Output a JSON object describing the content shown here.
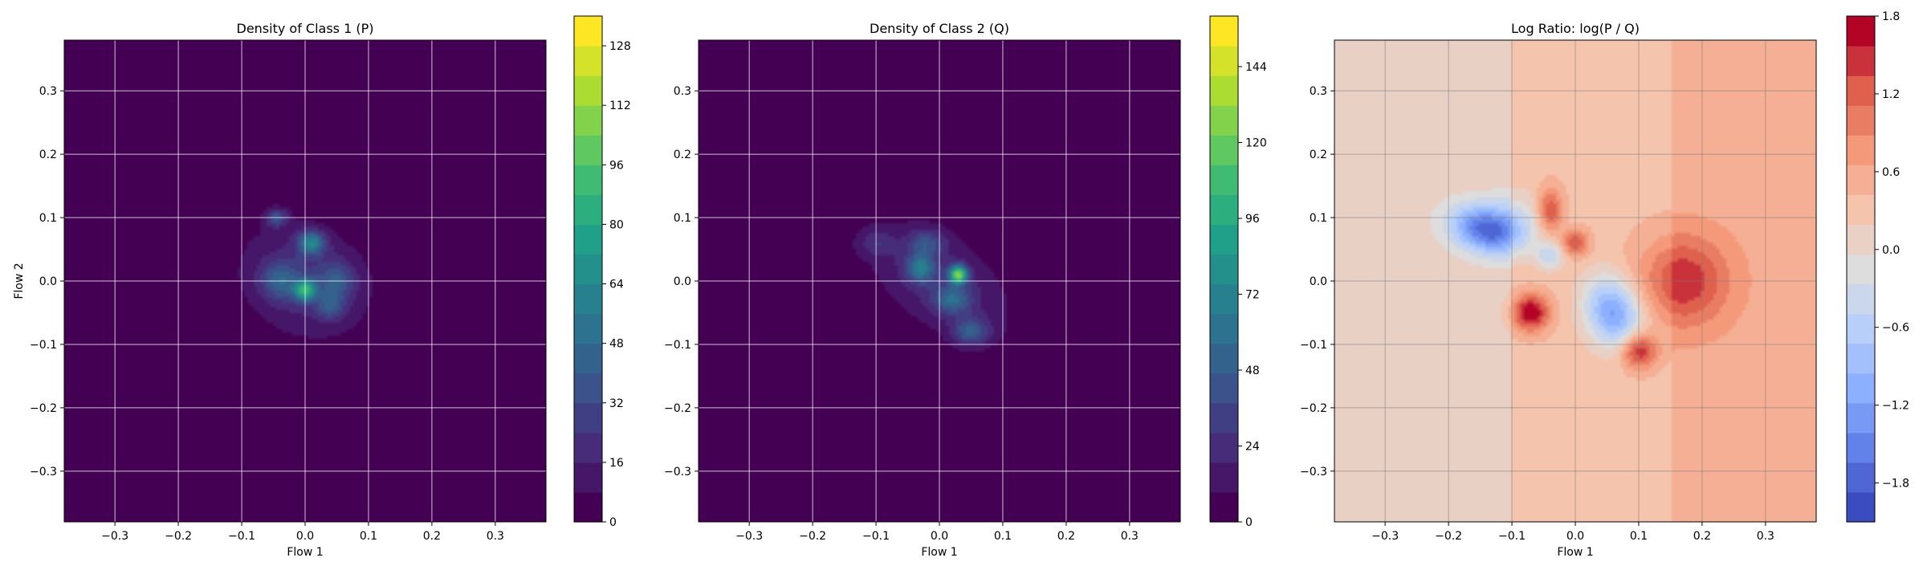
{
  "chart_data": [
    {
      "type": "heatmap",
      "title": "Density of Class 1 (P)",
      "xlabel": "Flow 1",
      "ylabel": "Flow 2",
      "xlim": [
        -0.38,
        0.38
      ],
      "ylim": [
        -0.38,
        0.38
      ],
      "xticks": [
        "−0.3",
        "−0.2",
        "−0.1",
        "0.0",
        "0.1",
        "0.2",
        "0.3"
      ],
      "yticks": [
        "0.3",
        "0.2",
        "0.1",
        "0.0",
        "−0.1",
        "−0.2",
        "−0.3"
      ],
      "colormap": "viridis",
      "colorbar": {
        "min": 0,
        "max": 136,
        "ticks": [
          "0",
          "16",
          "32",
          "48",
          "64",
          "80",
          "96",
          "112",
          "128"
        ]
      },
      "grid": true,
      "blobs": [
        {
          "x": 0.0,
          "y": 0.0,
          "sx": 0.075,
          "sy": 0.06,
          "rot": -25,
          "peak": 22
        },
        {
          "x": 0.0,
          "y": -0.015,
          "sx": 0.012,
          "sy": 0.012,
          "rot": 0,
          "peak": 68
        },
        {
          "x": 0.01,
          "y": 0.06,
          "sx": 0.015,
          "sy": 0.013,
          "rot": 0,
          "peak": 52
        },
        {
          "x": -0.04,
          "y": 0.0,
          "sx": 0.02,
          "sy": 0.02,
          "rot": 0,
          "peak": 30
        },
        {
          "x": -0.045,
          "y": 0.1,
          "sx": 0.012,
          "sy": 0.01,
          "rot": 0,
          "peak": 32
        },
        {
          "x": 0.05,
          "y": 0.0,
          "sx": 0.02,
          "sy": 0.02,
          "rot": 0,
          "peak": 26
        },
        {
          "x": 0.04,
          "y": -0.04,
          "sx": 0.015,
          "sy": 0.015,
          "rot": 0,
          "peak": 26
        }
      ]
    },
    {
      "type": "heatmap",
      "title": "Density of Class 2 (Q)",
      "xlabel": "Flow 1",
      "ylabel": "",
      "xlim": [
        -0.38,
        0.38
      ],
      "ylim": [
        -0.38,
        0.38
      ],
      "xticks": [
        "−0.3",
        "−0.2",
        "−0.1",
        "0.0",
        "0.1",
        "0.2",
        "0.3"
      ],
      "yticks": [
        "0.3",
        "0.2",
        "0.1",
        "0.0",
        "−0.1",
        "−0.2",
        "−0.3"
      ],
      "colormap": "viridis",
      "colorbar": {
        "min": 0,
        "max": 160,
        "ticks": [
          "0",
          "24",
          "48",
          "72",
          "96",
          "120",
          "144"
        ]
      },
      "grid": true,
      "blobs": [
        {
          "x": 0.0,
          "y": 0.0,
          "sx": 0.09,
          "sy": 0.05,
          "rot": -35,
          "peak": 24
        },
        {
          "x": 0.03,
          "y": 0.01,
          "sx": 0.01,
          "sy": 0.01,
          "rot": 0,
          "peak": 110
        },
        {
          "x": -0.03,
          "y": 0.02,
          "sx": 0.015,
          "sy": 0.015,
          "rot": 0,
          "peak": 50
        },
        {
          "x": 0.02,
          "y": -0.03,
          "sx": 0.02,
          "sy": 0.015,
          "rot": 0,
          "peak": 40
        },
        {
          "x": 0.05,
          "y": -0.08,
          "sx": 0.02,
          "sy": 0.015,
          "rot": 0,
          "peak": 40
        },
        {
          "x": -0.02,
          "y": 0.06,
          "sx": 0.02,
          "sy": 0.015,
          "rot": 0,
          "peak": 30
        },
        {
          "x": -0.1,
          "y": 0.06,
          "sx": 0.02,
          "sy": 0.015,
          "rot": 0,
          "peak": 18
        }
      ]
    },
    {
      "type": "heatmap",
      "title": "Log Ratio: log(P / Q)",
      "xlabel": "Flow 1",
      "ylabel": "",
      "xlim": [
        -0.38,
        0.38
      ],
      "ylim": [
        -0.38,
        0.38
      ],
      "xticks": [
        "−0.3",
        "−0.2",
        "−0.1",
        "0.0",
        "0.1",
        "0.2",
        "0.3"
      ],
      "yticks": [
        "0.3",
        "0.2",
        "0.1",
        "0.0",
        "−0.1",
        "−0.2",
        "−0.3"
      ],
      "colormap": "coolwarm",
      "colorbar": {
        "min": -2.1,
        "max": 1.8,
        "ticks": [
          "1.8",
          "1.2",
          "0.6",
          "0.0",
          "−0.6",
          "−1.2",
          "−1.8"
        ],
        "tick_values": [
          1.8,
          1.2,
          0.6,
          0.0,
          -0.6,
          -1.2,
          -1.8
        ]
      },
      "grid": true,
      "blobs": [
        {
          "x": -0.14,
          "y": 0.08,
          "sx": 0.04,
          "sy": 0.025,
          "rot": -15,
          "peak": -1.8
        },
        {
          "x": 0.06,
          "y": -0.05,
          "sx": 0.03,
          "sy": 0.04,
          "rot": 20,
          "peak": -1.6
        },
        {
          "x": -0.08,
          "y": 0.1,
          "sx": 0.04,
          "sy": 0.03,
          "rot": 0,
          "peak": -0.5
        },
        {
          "x": -0.04,
          "y": 0.04,
          "sx": 0.015,
          "sy": 0.015,
          "rot": 0,
          "peak": -0.8
        },
        {
          "x": -0.04,
          "y": 0.11,
          "sx": 0.015,
          "sy": 0.025,
          "rot": 0,
          "peak": 1.2
        },
        {
          "x": -0.07,
          "y": -0.05,
          "sx": 0.02,
          "sy": 0.02,
          "rot": 0,
          "peak": 1.5
        },
        {
          "x": 0.1,
          "y": -0.11,
          "sx": 0.02,
          "sy": 0.02,
          "rot": 0,
          "peak": 1.3
        },
        {
          "x": 0.17,
          "y": 0.0,
          "sx": 0.05,
          "sy": 0.05,
          "rot": 0,
          "peak": 1.0
        },
        {
          "x": 0.0,
          "y": 0.06,
          "sx": 0.015,
          "sy": 0.015,
          "rot": 0,
          "peak": 1.0
        }
      ]
    }
  ]
}
